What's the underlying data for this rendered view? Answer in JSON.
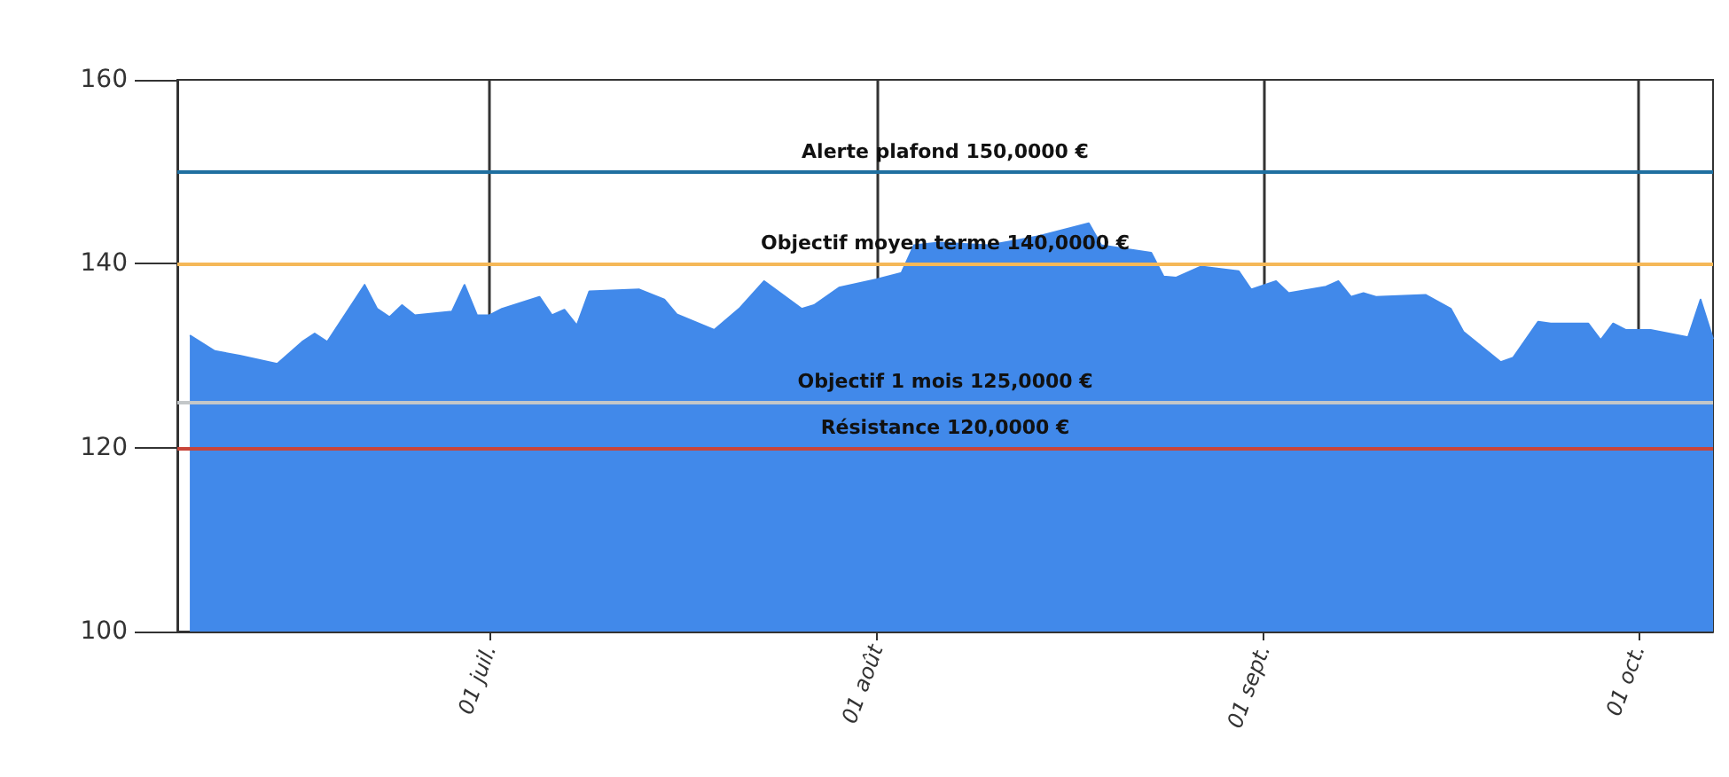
{
  "chart_data": {
    "type": "area",
    "x": [
      "--06-07",
      "--06-09",
      "--06-11",
      "--06-14",
      "--06-16",
      "--06-17",
      "--06-18",
      "--06-21",
      "--06-22",
      "--06-23",
      "--06-24",
      "--06-25",
      "--06-28",
      "--06-29",
      "--06-30",
      "--07-01",
      "--07-02",
      "--07-05",
      "--07-06",
      "--07-07",
      "--07-08",
      "--07-09",
      "--07-13",
      "--07-15",
      "--07-16",
      "--07-19",
      "--07-21",
      "--07-23",
      "--07-26",
      "--07-27",
      "--07-29",
      "--08-01",
      "--08-03",
      "--08-04",
      "--08-06",
      "--08-10",
      "--08-12",
      "--08-14",
      "--08-18",
      "--08-19",
      "--08-23",
      "--08-24",
      "--08-25",
      "--08-27",
      "--08-30",
      "--08-31",
      "--09-02",
      "--09-03",
      "--09-06",
      "--09-07",
      "--09-08",
      "--09-09",
      "--09-10",
      "--09-14",
      "--09-16",
      "--09-17",
      "--09-20",
      "--09-21",
      "--09-23",
      "--09-24",
      "--09-27",
      "--09-28",
      "--09-29",
      "--09-30",
      "--10-02",
      "--10-05",
      "--10-06",
      "--10-07"
    ],
    "series": [
      {
        "color": "#4189ea",
        "values": [
          132.2,
          130.5,
          130,
          129.1,
          131.5,
          132.4,
          131.5,
          137.7,
          135.1,
          134.2,
          135.5,
          134.4,
          134.8,
          137.7,
          134.4,
          134.4,
          135.1,
          136.4,
          134.4,
          135,
          133.3,
          137,
          137.2,
          136.1,
          134.5,
          132.8,
          135.1,
          138.1,
          135.1,
          135.5,
          137.4,
          138.3,
          139,
          142,
          142.3,
          142,
          142.5,
          143,
          144.4,
          142,
          141.2,
          138.6,
          138.5,
          139.7,
          139.2,
          137.2,
          138.1,
          136.8,
          137.5,
          138.1,
          136.4,
          136.8,
          136.4,
          136.6,
          135.1,
          132.6,
          129.3,
          129.8,
          133.7,
          133.5,
          133.5,
          131.7,
          133.5,
          132.8,
          132.8,
          132,
          136.1,
          131.8
        ]
      }
    ],
    "xlim": [
      "--06-06",
      "--10-07"
    ],
    "xticks": [
      {
        "value": "--07-01",
        "label": "01 juil."
      },
      {
        "value": "--08-01",
        "label": "01 août"
      },
      {
        "value": "--09-01",
        "label": "01 sept."
      },
      {
        "value": "--10-01",
        "label": "01 oct."
      }
    ],
    "ylim": [
      100,
      160
    ],
    "yticks": [
      100,
      120,
      140,
      160
    ],
    "grid": "x",
    "ref_lines": [
      {
        "axis": "y",
        "value": 150,
        "label": "Alerte plafond 150,0000 €",
        "color": "#1f6fa0"
      },
      {
        "axis": "y",
        "value": 140,
        "label": "Objectif moyen terme 140,0000 €",
        "color": "#f5b858"
      },
      {
        "axis": "y",
        "value": 125,
        "label": "Objectif 1 mois 125,0000 €",
        "color": "#c3c7c9"
      },
      {
        "axis": "y",
        "value": 120,
        "label": "Résistance 120,0000 €",
        "color": "#c8453a"
      }
    ]
  }
}
